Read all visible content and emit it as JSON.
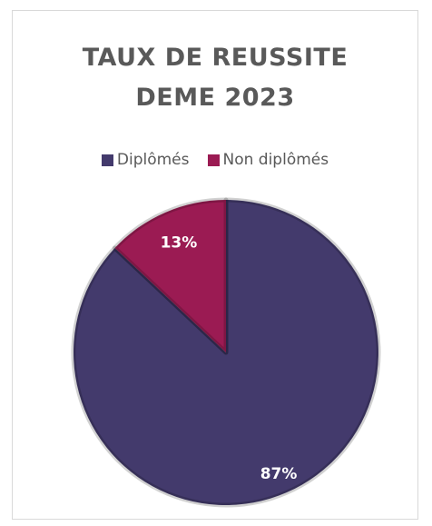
{
  "chart_data": {
    "type": "pie",
    "title": "TAUX DE REUSSITE\nDEME 2023",
    "legend_position": "top",
    "slices": [
      {
        "label": "Diplômés",
        "value": 87,
        "data_label": "87%",
        "color": "#433a6c"
      },
      {
        "label": "Non diplômés",
        "value": 13,
        "data_label": "13%",
        "color": "#9b1b53"
      }
    ]
  }
}
